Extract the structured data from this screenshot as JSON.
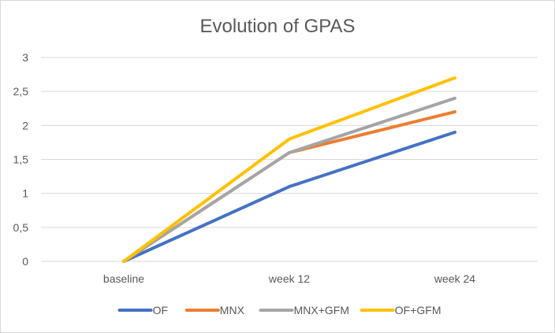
{
  "chart_data": {
    "type": "line",
    "title": "Evolution of GPAS",
    "xlabel": "",
    "ylabel": "",
    "categories": [
      "baseline",
      "week 12",
      "week 24"
    ],
    "ylim": [
      0,
      3
    ],
    "yticks": [
      {
        "value": 0,
        "label": "0"
      },
      {
        "value": 0.5,
        "label": "0,5"
      },
      {
        "value": 1,
        "label": "1"
      },
      {
        "value": 1.5,
        "label": "1,5"
      },
      {
        "value": 2,
        "label": "2"
      },
      {
        "value": 2.5,
        "label": "2,5"
      },
      {
        "value": 3,
        "label": "3"
      }
    ],
    "grid": "horizontal",
    "legend_position": "bottom",
    "series": [
      {
        "name": "OF",
        "color": "#4472C4",
        "values": [
          0,
          1.1,
          1.9
        ]
      },
      {
        "name": "MNX",
        "color": "#ED7D31",
        "values": [
          0,
          1.6,
          2.2
        ]
      },
      {
        "name": "MNX+GFM",
        "color": "#A5A5A5",
        "values": [
          0,
          1.6,
          2.4
        ]
      },
      {
        "name": "OF+GFM",
        "color": "#FFC000",
        "values": [
          0,
          1.8,
          2.7
        ]
      }
    ]
  }
}
